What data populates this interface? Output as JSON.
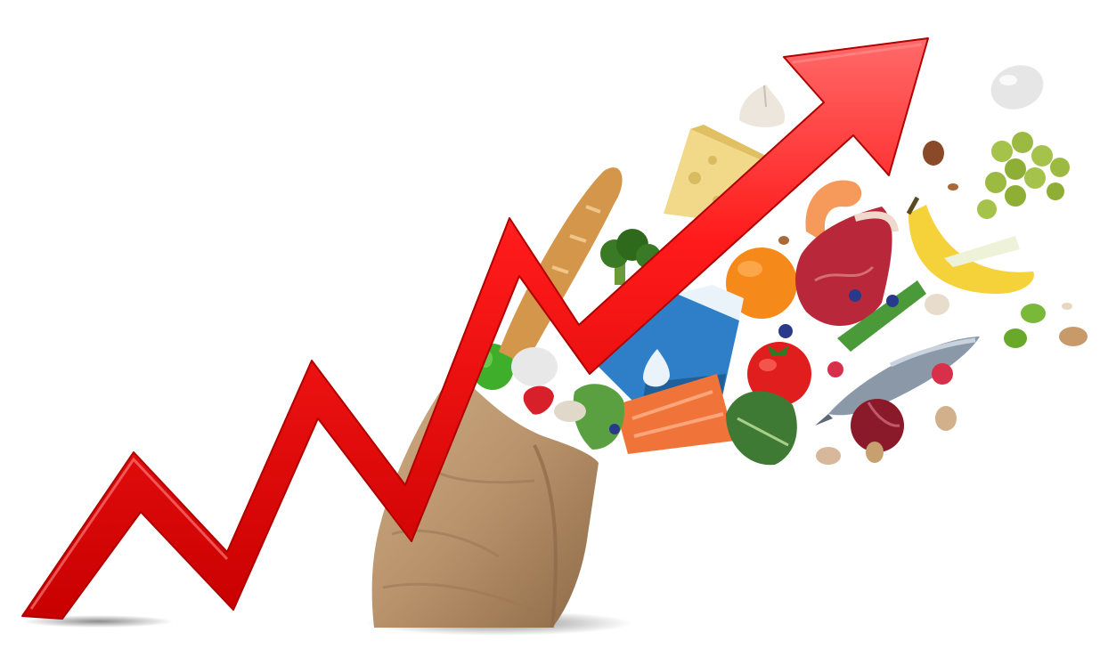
{
  "scene": {
    "background": "#ffffff",
    "subject": "food-inflation-illustration",
    "arrow": {
      "color": "#ff1a1a",
      "shade": "#c80000",
      "highlight": "#ff6a6a",
      "direction": "up-right"
    },
    "bag": {
      "color": "#b8926a",
      "shade": "#8d6a48"
    },
    "items": [
      "garlic-icon",
      "egg-icon",
      "cheese-icon",
      "grapes-icon",
      "baguette-icon",
      "broccoli-icon",
      "orange-icon",
      "steak-icon",
      "banana-icon",
      "milk-carton-icon",
      "tomato-icon",
      "fish-icon",
      "salmon-icon",
      "kale-icon",
      "onion-icon",
      "pepper-icon",
      "strawberry-icon",
      "shrimp-icon",
      "nuts-icon"
    ]
  }
}
